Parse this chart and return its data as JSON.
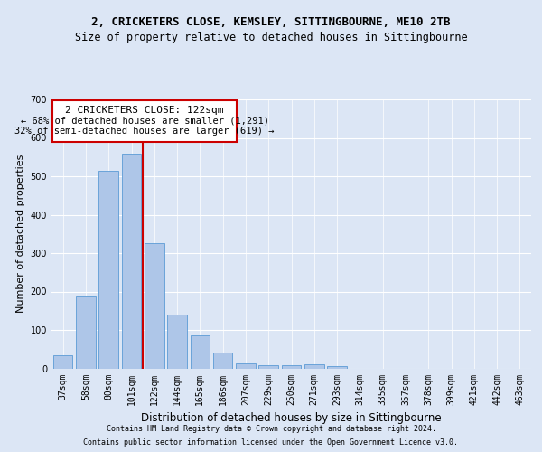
{
  "title1": "2, CRICKETERS CLOSE, KEMSLEY, SITTINGBOURNE, ME10 2TB",
  "title2": "Size of property relative to detached houses in Sittingbourne",
  "xlabel": "Distribution of detached houses by size in Sittingbourne",
  "ylabel": "Number of detached properties",
  "footnote1": "Contains HM Land Registry data © Crown copyright and database right 2024.",
  "footnote2": "Contains public sector information licensed under the Open Government Licence v3.0.",
  "categories": [
    "37sqm",
    "58sqm",
    "80sqm",
    "101sqm",
    "122sqm",
    "144sqm",
    "165sqm",
    "186sqm",
    "207sqm",
    "229sqm",
    "250sqm",
    "271sqm",
    "293sqm",
    "314sqm",
    "335sqm",
    "357sqm",
    "378sqm",
    "399sqm",
    "421sqm",
    "442sqm",
    "463sqm"
  ],
  "values": [
    35,
    190,
    515,
    560,
    325,
    140,
    85,
    42,
    14,
    9,
    9,
    10,
    6,
    0,
    0,
    0,
    0,
    0,
    0,
    0,
    0
  ],
  "bar_color": "#aec6e8",
  "bar_edge_color": "#5b9bd5",
  "vline_x_index": 4,
  "vline_color": "#cc0000",
  "annotation_title": "2 CRICKETERS CLOSE: 122sqm",
  "annotation_line1": "← 68% of detached houses are smaller (1,291)",
  "annotation_line2": "32% of semi-detached houses are larger (619) →",
  "annotation_box_color": "#cc0000",
  "ylim": [
    0,
    700
  ],
  "yticks": [
    0,
    100,
    200,
    300,
    400,
    500,
    600,
    700
  ],
  "bg_color": "#dce6f5",
  "plot_bg_color": "#dce6f5",
  "grid_color": "#ffffff",
  "title1_fontsize": 9,
  "title2_fontsize": 8.5,
  "xlabel_fontsize": 8.5,
  "ylabel_fontsize": 8,
  "tick_fontsize": 7,
  "footnote_fontsize": 6
}
